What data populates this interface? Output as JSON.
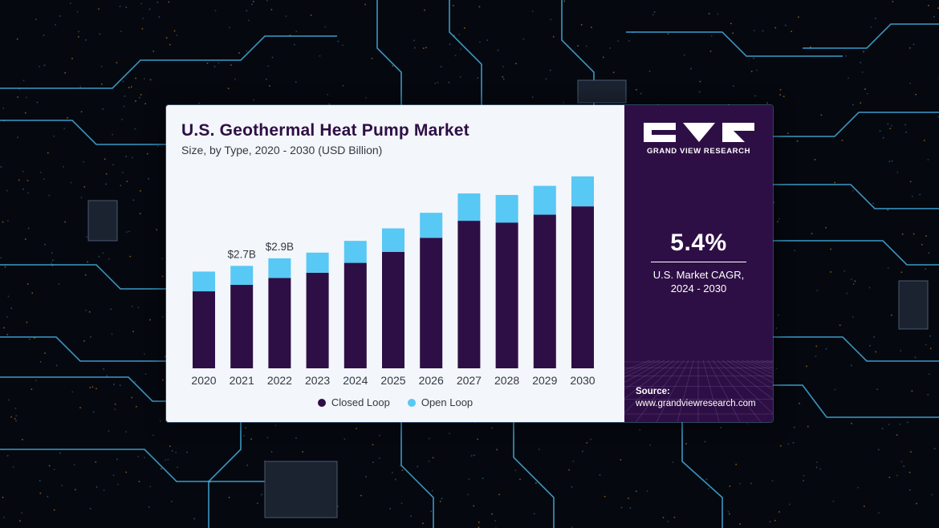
{
  "colors": {
    "closed_loop": "#2e0f45",
    "open_loop": "#58c8f5",
    "side_panel": "#2e0f45",
    "background_circuit": "#1fa7e6"
  },
  "header": {
    "title": "U.S. Geothermal Heat Pump Market",
    "subtitle": "Size, by Type, 2020 - 2030 (USD Billion)"
  },
  "brand": {
    "logo_icon": "gvr-logo-icon",
    "name": "GRAND VIEW RESEARCH"
  },
  "cagr": {
    "value": "5.4%",
    "label": "U.S. Market CAGR,\n2024 - 2030"
  },
  "source": {
    "label": "Source:",
    "url": "www.grandviewresearch.com"
  },
  "chart_data": {
    "type": "bar",
    "stacked": true,
    "title": "U.S. Geothermal Heat Pump Market",
    "subtitle": "Size, by Type, 2020 - 2030 (USD Billion)",
    "categories": [
      "2020",
      "2021",
      "2022",
      "2023",
      "2024",
      "2025",
      "2026",
      "2027",
      "2028",
      "2029",
      "2030"
    ],
    "series": [
      {
        "name": "Closed Loop",
        "values": [
          2.03,
          2.2,
          2.38,
          2.52,
          2.78,
          3.07,
          3.44,
          3.89,
          3.84,
          4.05,
          4.27
        ]
      },
      {
        "name": "Open Loop",
        "values": [
          0.52,
          0.5,
          0.52,
          0.53,
          0.58,
          0.62,
          0.66,
          0.72,
          0.73,
          0.76,
          0.79
        ]
      }
    ],
    "data_labels": [
      {
        "category": "2021",
        "text": "$2.7B"
      },
      {
        "category": "2022",
        "text": "$2.9B"
      }
    ],
    "ylim": [
      0,
      5.5
    ],
    "grid": false,
    "legend_position": "bottom"
  }
}
